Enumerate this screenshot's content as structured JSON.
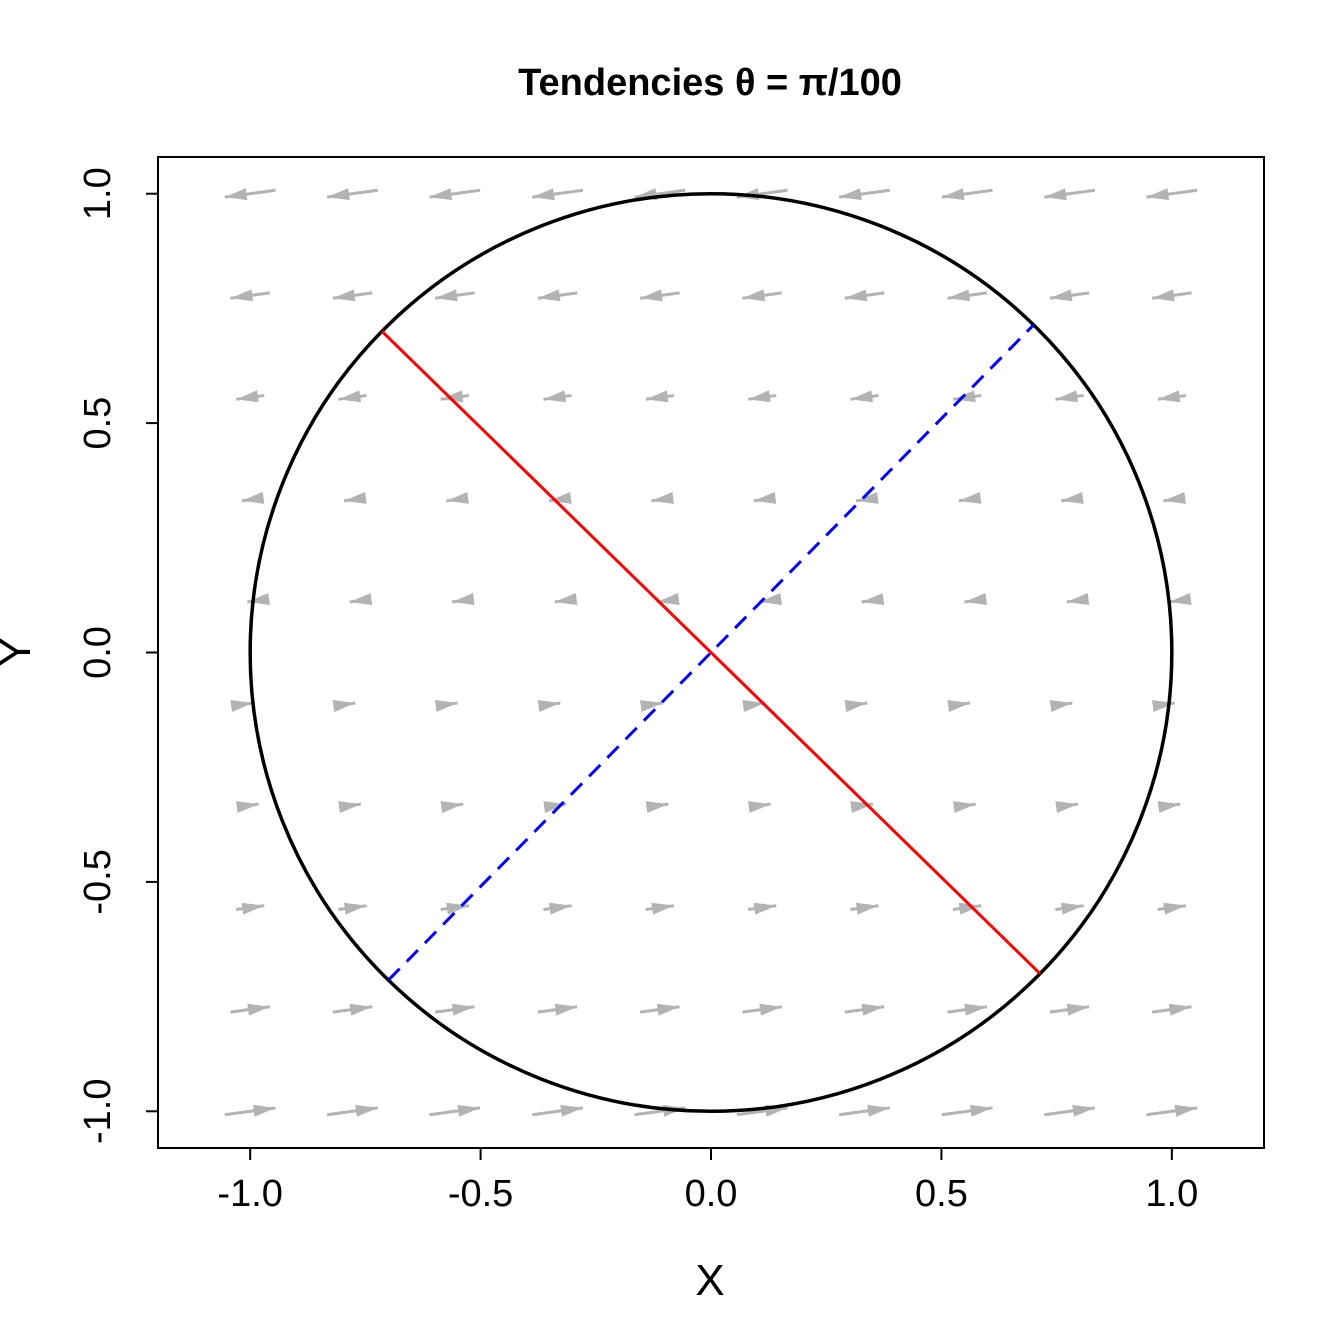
{
  "chart_data": {
    "type": "vector_field",
    "title": "Tendencies θ = π/100",
    "xlabel": "X",
    "ylabel": "Y",
    "xlim": [
      -1.2,
      1.2
    ],
    "ylim": [
      -1.08,
      1.08
    ],
    "x_ticks": [
      -1.0,
      -0.5,
      0.0,
      0.5,
      1.0
    ],
    "x_tick_labels": [
      "-1.0",
      "-0.5",
      "0.0",
      "0.5",
      "1.0"
    ],
    "y_ticks": [
      -1.0,
      -0.5,
      0.0,
      0.5,
      1.0
    ],
    "y_tick_labels": [
      "-1.0",
      "-0.5",
      "0.0",
      "0.5",
      "1.0"
    ],
    "theta": "π/100",
    "field_grid": {
      "x": [
        -1.0,
        -0.778,
        -0.556,
        -0.333,
        -0.111,
        0.111,
        0.333,
        0.556,
        0.778,
        1.0
      ],
      "y": [
        -1.0,
        -0.778,
        -0.556,
        -0.333,
        -0.111,
        0.111,
        0.333,
        0.556,
        0.778,
        1.0
      ]
    },
    "circle": {
      "center": [
        0,
        0
      ],
      "radius": 1,
      "color": "#000000"
    },
    "lines": [
      {
        "name": "",
        "from": [
          -0.714,
          0.7
        ],
        "to": [
          0.714,
          -0.7
        ],
        "color": "#ff0000",
        "style": "solid"
      },
      {
        "name": "",
        "from": [
          -0.7,
          -0.714
        ],
        "to": [
          0.7,
          0.714
        ],
        "color": "#0000ff",
        "style": "dashed"
      }
    ],
    "colors": {
      "arrows": "#b3b3b3",
      "frame": "#000000"
    },
    "grid": false
  }
}
